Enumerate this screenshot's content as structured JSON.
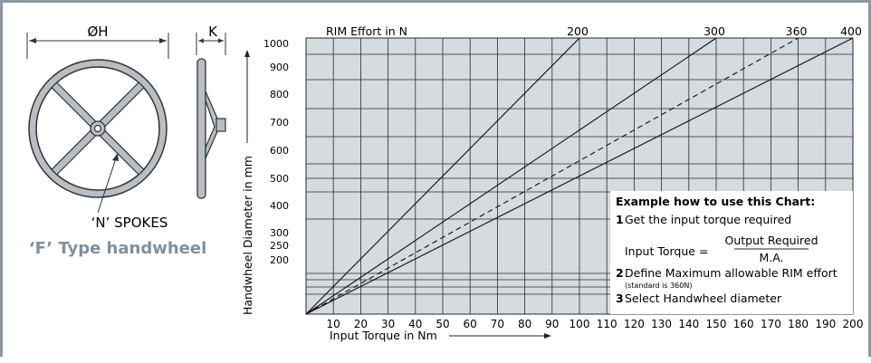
{
  "colors": {
    "frame": "#8e979f",
    "chart_bg": "#d6dbe0",
    "grid": "#2a2a2a",
    "wheel_fill": "#b9bec3",
    "wheel_stroke": "#333333",
    "title_accent": "#7f8f9e"
  },
  "figure": {
    "dim_diameter": "ØH",
    "dim_thickness": "K",
    "spokes_label": "‘N’ SPOKES",
    "type_title": "‘F’ Type handwheel"
  },
  "chart_data": {
    "type": "line",
    "xlabel": "Input Torque in Nm",
    "ylabel": "Handwheel Diameter in mm",
    "xlim": [
      0,
      200
    ],
    "x_ticks": [
      10,
      20,
      30,
      40,
      50,
      60,
      70,
      80,
      90,
      100,
      110,
      120,
      130,
      140,
      150,
      160,
      170,
      180,
      190,
      200
    ],
    "y_tick_labels": [
      1000,
      900,
      800,
      700,
      600,
      500,
      400,
      300,
      250,
      200
    ],
    "top_axis_label": "RIM Effort in N",
    "series": [
      {
        "name": "200",
        "style": "solid",
        "x": [
          0,
          100
        ],
        "y": [
          0,
          1000
        ]
      },
      {
        "name": "300",
        "style": "solid",
        "x": [
          0,
          150
        ],
        "y": [
          0,
          1000
        ]
      },
      {
        "name": "360",
        "style": "dashed",
        "x": [
          0,
          180
        ],
        "y": [
          0,
          1000
        ]
      },
      {
        "name": "400",
        "style": "solid",
        "x": [
          0,
          200
        ],
        "y": [
          0,
          1000
        ]
      }
    ],
    "annotations": {
      "title": "Example how to use this Chart:",
      "step1_num": "1",
      "step1": "Get the input torque required",
      "formula_lhs": "Input Torque =",
      "formula_num": "Output Required",
      "formula_den": "M.A.",
      "step2_num": "2",
      "step2": "Define Maximum allowable RIM effort",
      "step2_note": "(standard is 360N)",
      "step3_num": "3",
      "step3": "Select Handwheel diameter"
    }
  }
}
